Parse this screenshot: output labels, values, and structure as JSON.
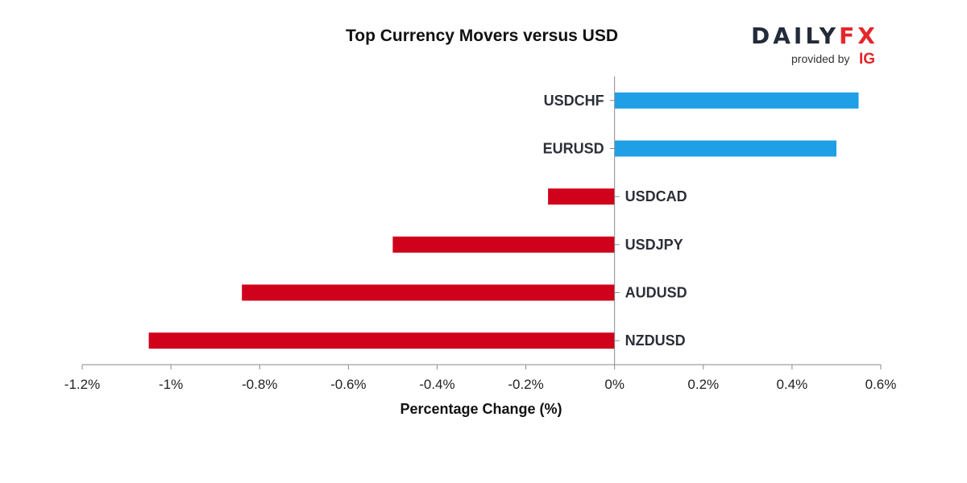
{
  "chart_data": {
    "type": "bar",
    "orientation": "horizontal",
    "title": "Top Currency Movers versus USD",
    "xlabel": "Percentage Change (%)",
    "ylabel": "",
    "categories": [
      "USDCHF",
      "EURUSD",
      "USDCAD",
      "USDJPY",
      "AUDUSD",
      "NZDUSD"
    ],
    "values": [
      0.55,
      0.5,
      -0.15,
      -0.5,
      -0.84,
      -1.05
    ],
    "xlim": [
      -1.2,
      0.6
    ],
    "x_ticks": [
      -1.2,
      -1.0,
      -0.8,
      -0.6,
      -0.4,
      -0.2,
      0,
      0.2,
      0.4,
      0.6
    ],
    "x_tick_labels": [
      "-1.2%",
      "-1%",
      "-0.8%",
      "-0.6%",
      "-0.4%",
      "-0.2%",
      "0%",
      "0.2%",
      "0.4%",
      "0.6%"
    ],
    "colors": {
      "positive": "#1e9fe6",
      "negative": "#d0021b"
    },
    "grid": false,
    "legend": "none"
  },
  "logo": {
    "brand_daily": "DAILY",
    "brand_fx": "FX",
    "provided_by": "provided by",
    "ig": "IG"
  }
}
